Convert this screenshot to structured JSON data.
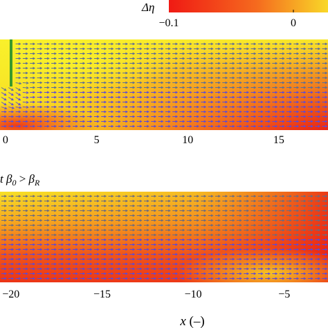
{
  "colorbar": {
    "label": "Δη",
    "tick_labels": [
      "−0.1",
      "0"
    ],
    "tick_values": [
      -0.1,
      0
    ],
    "colors": [
      "#f01a14",
      "#f9f02a"
    ]
  },
  "chart_data": [
    {
      "type": "heatmap",
      "name": "upper-panel",
      "panel_label_prefix": "β",
      "panel_label_sub0": "0",
      "panel_label_op": " < ",
      "panel_label_subR": "R",
      "x_ticks": [
        0,
        5,
        10,
        15
      ],
      "x_tick_labels": [
        "0",
        "5",
        "10",
        "15"
      ],
      "xlim": [
        -0.3,
        17.7
      ],
      "field": "Δη with velocity vectors",
      "wall_x": 0
    },
    {
      "type": "heatmap",
      "name": "lower-panel",
      "panel_label_prefix": "t β",
      "panel_label_sub0": "0",
      "panel_label_op": " > ",
      "panel_label_subR": "R",
      "x_ticks": [
        -20,
        -15,
        -10,
        -5
      ],
      "x_tick_labels": [
        "−20",
        "−15",
        "−10",
        "−5"
      ],
      "xlim": [
        -20.6,
        -2.6
      ],
      "xlabel": "x (–)",
      "field": "Δη with velocity vectors"
    }
  ]
}
